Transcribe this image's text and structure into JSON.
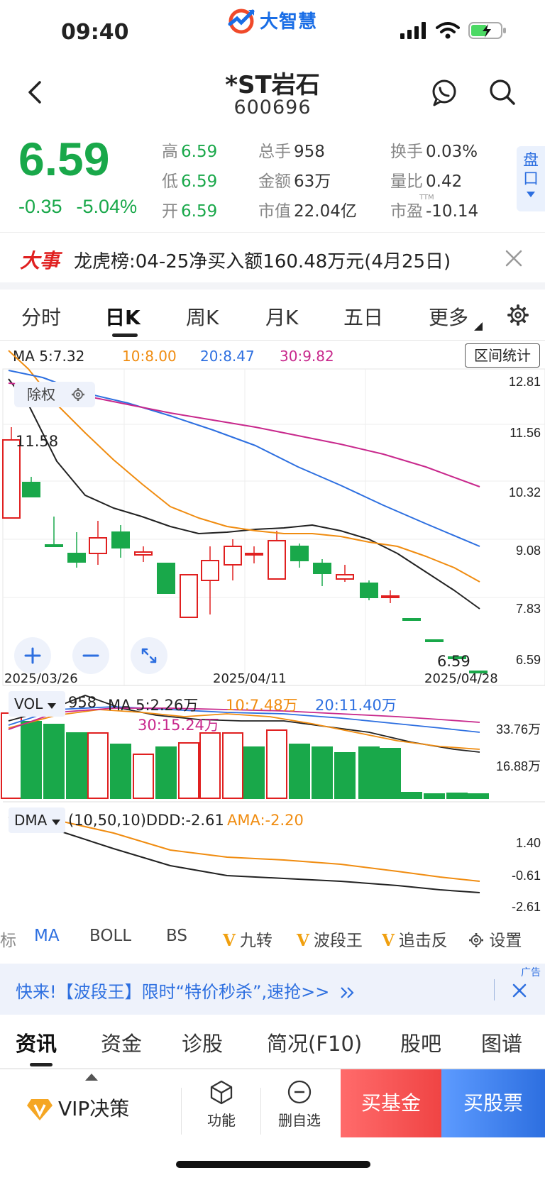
{
  "status_bar": {
    "time": "09:40",
    "app_logo_text": "大智慧"
  },
  "nav": {
    "stock_name": "*ST岩石",
    "stock_code": "600696"
  },
  "quote": {
    "price": "6.59",
    "change": "-0.35",
    "change_pct": "-5.04%",
    "fields": [
      {
        "label": "高",
        "value": "6.59"
      },
      {
        "label": "低",
        "value": "6.59"
      },
      {
        "label": "开",
        "value": "6.59"
      },
      {
        "label": "总手",
        "value": "958"
      },
      {
        "label": "金额",
        "value": "63万"
      },
      {
        "label": "市值",
        "value": "22.04亿"
      },
      {
        "label": "换手",
        "value": "0.03%"
      },
      {
        "label": "量比",
        "value": "0.42"
      },
      {
        "label": "市盈",
        "value": "-10.14"
      }
    ],
    "ttm_label": "TTM",
    "pankou_label": "盘口"
  },
  "event": {
    "tag": "大事",
    "text": "龙虎榜:04-25净买入额160.48万元(4月25日)"
  },
  "kline_tabs": [
    "分时",
    "日K",
    "周K",
    "月K",
    "五日",
    "更多"
  ],
  "ma_legend": {
    "ma5": "MA 5:7.32",
    "ma10": "10:8.00",
    "ma20": "20:8.47",
    "ma30": "30:9.82"
  },
  "range_stats_label": "区间统计",
  "chuquan_label": "除权",
  "price_axis": [
    "12.81",
    "11.56",
    "10.32",
    "9.08",
    "7.83",
    "6.59"
  ],
  "price_marks": {
    "high_label": "11.58",
    "last_label": "6.59"
  },
  "dates": [
    "2025/03/26",
    "2025/04/11",
    "2025/04/28"
  ],
  "vol": {
    "selector": "VOL",
    "value": "958",
    "ma5": "MA 5:2.26万",
    "ma10": "10:7.48万",
    "ma20": "20:11.40万",
    "ma30": "30:15.24万",
    "axis": [
      "33.76万",
      "16.88万"
    ]
  },
  "dma": {
    "selector": "DMA",
    "params": "(10,50,10)DDD:-2.61",
    "ama": "AMA:-2.20",
    "axis": [
      "1.40",
      "-0.61",
      "-2.61"
    ]
  },
  "indicator_tabs": {
    "partial": "标",
    "ma": "MA",
    "boll": "BOLL",
    "bs": "BS",
    "jiuzhuan": "九转",
    "boduanwang": "波段王",
    "zhuijifan": "追击反",
    "settings": "设置",
    "v_mark": "V"
  },
  "ad": {
    "text": "快来!【波段王】限时“特价秒杀”,速抢>>",
    "tag": "广告"
  },
  "news_tabs": [
    "资讯",
    "资金",
    "诊股",
    "简况(F10)",
    "股吧",
    "图谱"
  ],
  "bottom_bar": {
    "vip": "VIP决策",
    "function": "功能",
    "remove_watch": "删自选",
    "buy_fund": "买基金",
    "buy_stock": "买股票"
  },
  "colors": {
    "up": "#e02020",
    "down": "#19a84a",
    "ma5": "#222222",
    "ma10": "#f08c10",
    "ma20": "#2d6fe0",
    "ma30": "#c8288c",
    "accent": "#2d6fe0"
  }
}
